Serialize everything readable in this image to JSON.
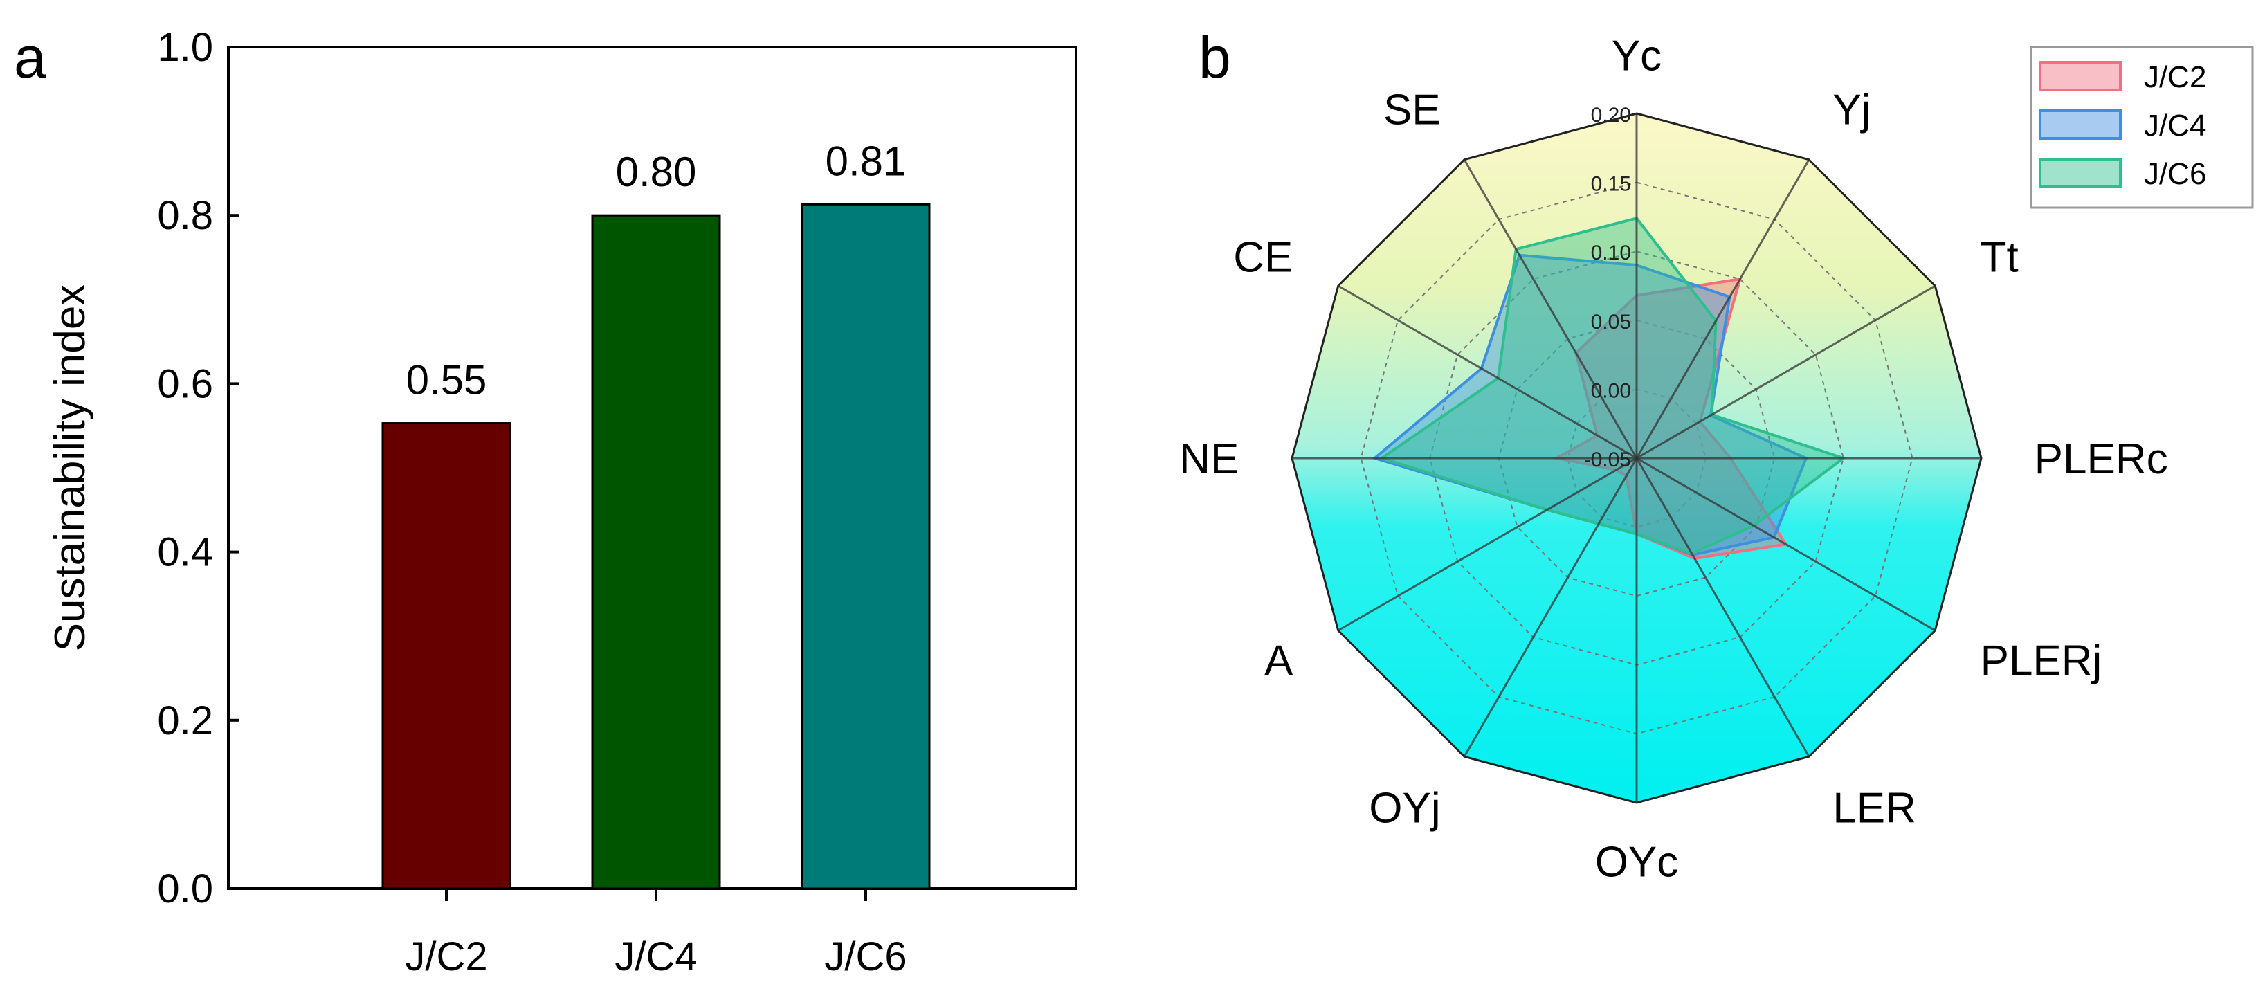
{
  "chart_data": [
    {
      "type": "bar",
      "panel": "a",
      "title": "",
      "xlabel": "",
      "ylabel": "Sustainability index",
      "ylim": [
        0,
        1.0
      ],
      "yticks": [
        "0.0",
        "0.2",
        "0.4",
        "0.6",
        "0.8",
        "1.0"
      ],
      "categories": [
        "J/C2",
        "J/C4",
        "J/C6"
      ],
      "values": [
        0.553,
        0.8,
        0.813
      ],
      "value_labels": [
        "0.55",
        "0.80",
        "0.81"
      ],
      "colors": [
        "#660000",
        "#005500",
        "#007b78"
      ]
    },
    {
      "type": "radar",
      "panel": "b",
      "axes": [
        "Yc",
        "Yj",
        "Tt",
        "PLERc",
        "PLERj",
        "LER",
        "OYc",
        "OYj",
        "A",
        "NE",
        "CE",
        "SE"
      ],
      "rlim": [
        -0.05,
        0.2
      ],
      "rings": [
        "-0.05",
        "0.00",
        "0.05",
        "0.10",
        "0.15",
        "0.20"
      ],
      "series": [
        {
          "name": "J/C2",
          "color": "#f07080",
          "values": [
            0.068,
            0.1,
            0.003,
            0.018,
            0.075,
            0.034,
            0.005,
            -0.035,
            -0.033,
            0.008,
            -0.017,
            0.038
          ]
        },
        {
          "name": "J/C4",
          "color": "#3f8fe0",
          "values": [
            0.09,
            0.085,
            0.012,
            0.073,
            0.065,
            0.031,
            0.005,
            0.005,
            0.025,
            0.14,
            0.08,
            0.12
          ]
        },
        {
          "name": "J/C6",
          "color": "#2fbf8f",
          "values": [
            0.124,
            0.065,
            0.013,
            0.1,
            0.048,
            0.03,
            0.005,
            0.005,
            0.025,
            0.135,
            0.066,
            0.125
          ]
        }
      ],
      "legend": [
        "J/C2",
        "J/C4",
        "J/C6"
      ]
    }
  ]
}
